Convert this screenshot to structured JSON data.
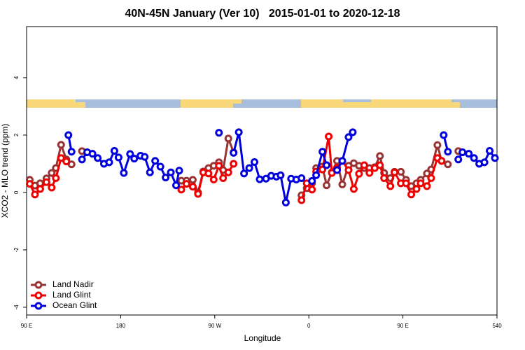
{
  "chart_data": {
    "type": "line",
    "title": "40N-45N January (Ver 10)   2015-01-01 to 2020-12-18",
    "xlabel": "Longitude",
    "ylabel": "XCO2 - MLO trend (ppm)",
    "xlim": [
      90,
      540
    ],
    "ylim": [
      -4.27,
      5.78
    ],
    "xticks": [
      {
        "value": 90,
        "label": "90 E"
      },
      180,
      {
        "value": 270,
        "label": "90 W"
      },
      {
        "value": 360,
        "label": "0"
      },
      {
        "value": 450,
        "label": "90 E"
      },
      540
    ],
    "yticks": [
      -4,
      -2,
      0,
      2,
      4
    ],
    "legend": "bottom-left",
    "series": [
      {
        "name": "Land Nadir",
        "color": "#993333",
        "x": [
          93,
          98,
          103,
          109,
          114,
          118,
          123,
          128,
          133,
          null,
          143,
          null,
          238,
          243,
          249,
          254,
          259,
          264,
          269,
          274,
          278,
          283,
          288,
          null,
          353,
          358,
          363,
          367,
          373,
          377,
          382,
          387,
          392,
          398,
          403,
          408,
          413,
          418,
          423,
          428,
          432,
          438,
          442,
          448,
          453,
          458,
          463,
          467,
          473,
          477,
          483,
          487,
          493,
          null,
          503
        ],
        "values": [
          0.44,
          0.24,
          0.32,
          0.49,
          0.68,
          0.85,
          1.66,
          1.15,
          0.98,
          null,
          1.44,
          null,
          0.41,
          0.41,
          0.44,
          0,
          0.73,
          0.85,
          0.93,
          1.05,
          0.78,
          1.88,
          1.4,
          null,
          -0.1,
          0.15,
          0.32,
          0.85,
          0.9,
          0.25,
          0.7,
          1.1,
          0.28,
          0.93,
          1.02,
          0.93,
          0.85,
          0.85,
          0.88,
          1.27,
          0.68,
          0.5,
          0.72,
          0.72,
          0.44,
          0.22,
          0.32,
          0.44,
          0.66,
          0.8,
          1.65,
          1.1,
          0.98,
          null,
          1.44
        ]
      },
      {
        "name": "Land Glint",
        "color": "#ee0000",
        "x": [
          93,
          98,
          103,
          109,
          114,
          118,
          123,
          128,
          null,
          238,
          243,
          249,
          254,
          259,
          264,
          269,
          274,
          278,
          283,
          288,
          null,
          353,
          358,
          363,
          367,
          373,
          379,
          382,
          387,
          392,
          398,
          403,
          408,
          413,
          418,
          423,
          428,
          432,
          438,
          442,
          448,
          453,
          458,
          463,
          467,
          473,
          477,
          483,
          487
        ],
        "values": [
          0.3,
          -0.07,
          0.12,
          0.36,
          0.17,
          0.5,
          1.2,
          1.08,
          null,
          0.1,
          0.3,
          0.2,
          -0.05,
          0.7,
          0.66,
          0.45,
          0.93,
          0.5,
          0.7,
          1.0,
          null,
          -0.27,
          0.32,
          0.1,
          0.73,
          0.8,
          1.95,
          0.68,
          0.85,
          1.1,
          0.78,
          0.12,
          0.65,
          0.95,
          0.68,
          0.85,
          0.95,
          0.5,
          0.22,
          0.7,
          0.32,
          0.32,
          -0.07,
          0.12,
          0.32,
          0.22,
          0.5,
          1.2,
          1.1
        ]
      },
      {
        "name": "Ocean Glint",
        "color": "#0000dd",
        "x": [
          130,
          133,
          null,
          143,
          148,
          153,
          158,
          164,
          169,
          174,
          178,
          183,
          189,
          193,
          199,
          203,
          208,
          213,
          218,
          223,
          228,
          233,
          236,
          null,
          274,
          null,
          288,
          293,
          298,
          303,
          308,
          313,
          319,
          324,
          329,
          333,
          338,
          343,
          348,
          353,
          null,
          363,
          367,
          373,
          377,
          null,
          387,
          392,
          398,
          402,
          null,
          489,
          493,
          null,
          503,
          507,
          513,
          518,
          523,
          528,
          533,
          538
        ],
        "values": [
          2.0,
          1.42,
          null,
          1.15,
          1.4,
          1.35,
          1.2,
          1.0,
          1.05,
          1.45,
          1.22,
          0.68,
          1.34,
          1.18,
          1.28,
          1.24,
          0.7,
          1.1,
          0.9,
          0.52,
          0.7,
          0.25,
          0.76,
          null,
          2.08,
          null,
          1.38,
          2.1,
          0.66,
          0.85,
          1.06,
          0.46,
          0.48,
          0.58,
          0.55,
          0.6,
          -0.35,
          0.48,
          0.45,
          0.5,
          null,
          0.4,
          0.6,
          1.42,
          0.95,
          null,
          0.78,
          1.1,
          1.93,
          2.1,
          null,
          2.0,
          1.42,
          null,
          1.15,
          1.4,
          1.35,
          1.2,
          1.0,
          1.05,
          1.45,
          1.2
        ]
      }
    ]
  }
}
